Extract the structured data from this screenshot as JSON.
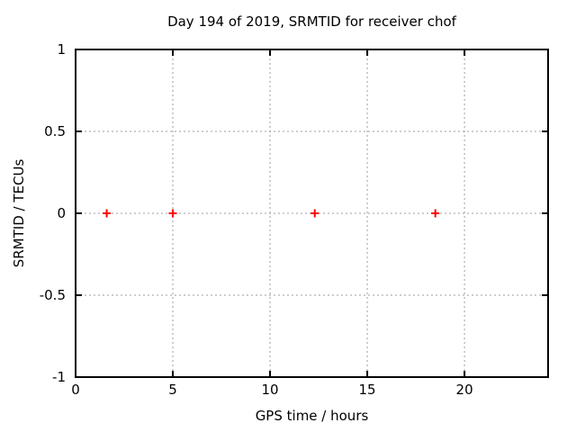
{
  "window": {
    "background": "#ffffff"
  },
  "chart_data": {
    "type": "scatter",
    "title": "Day 194 of 2019, SRMTID for receiver chof",
    "xlabel": "GPS time / hours",
    "ylabel": "SRMTID / TECUs",
    "xlim": [
      0,
      24.3
    ],
    "ylim": [
      -1,
      1
    ],
    "xticks": [
      0,
      5,
      10,
      15,
      20
    ],
    "yticks": [
      1,
      0.5,
      0,
      -0.5,
      -1
    ],
    "grid": true,
    "legend": "none",
    "colors": {
      "marker": "#ff0000",
      "grid": "#9e9e9e",
      "border": "#000000",
      "text": "#000000"
    },
    "series": [
      {
        "name": "SRMTID",
        "marker": "plus",
        "color": "#ff0000",
        "points": [
          [
            1.6,
            0
          ],
          [
            5.0,
            0
          ],
          [
            12.3,
            0
          ],
          [
            18.5,
            0
          ]
        ]
      }
    ]
  }
}
